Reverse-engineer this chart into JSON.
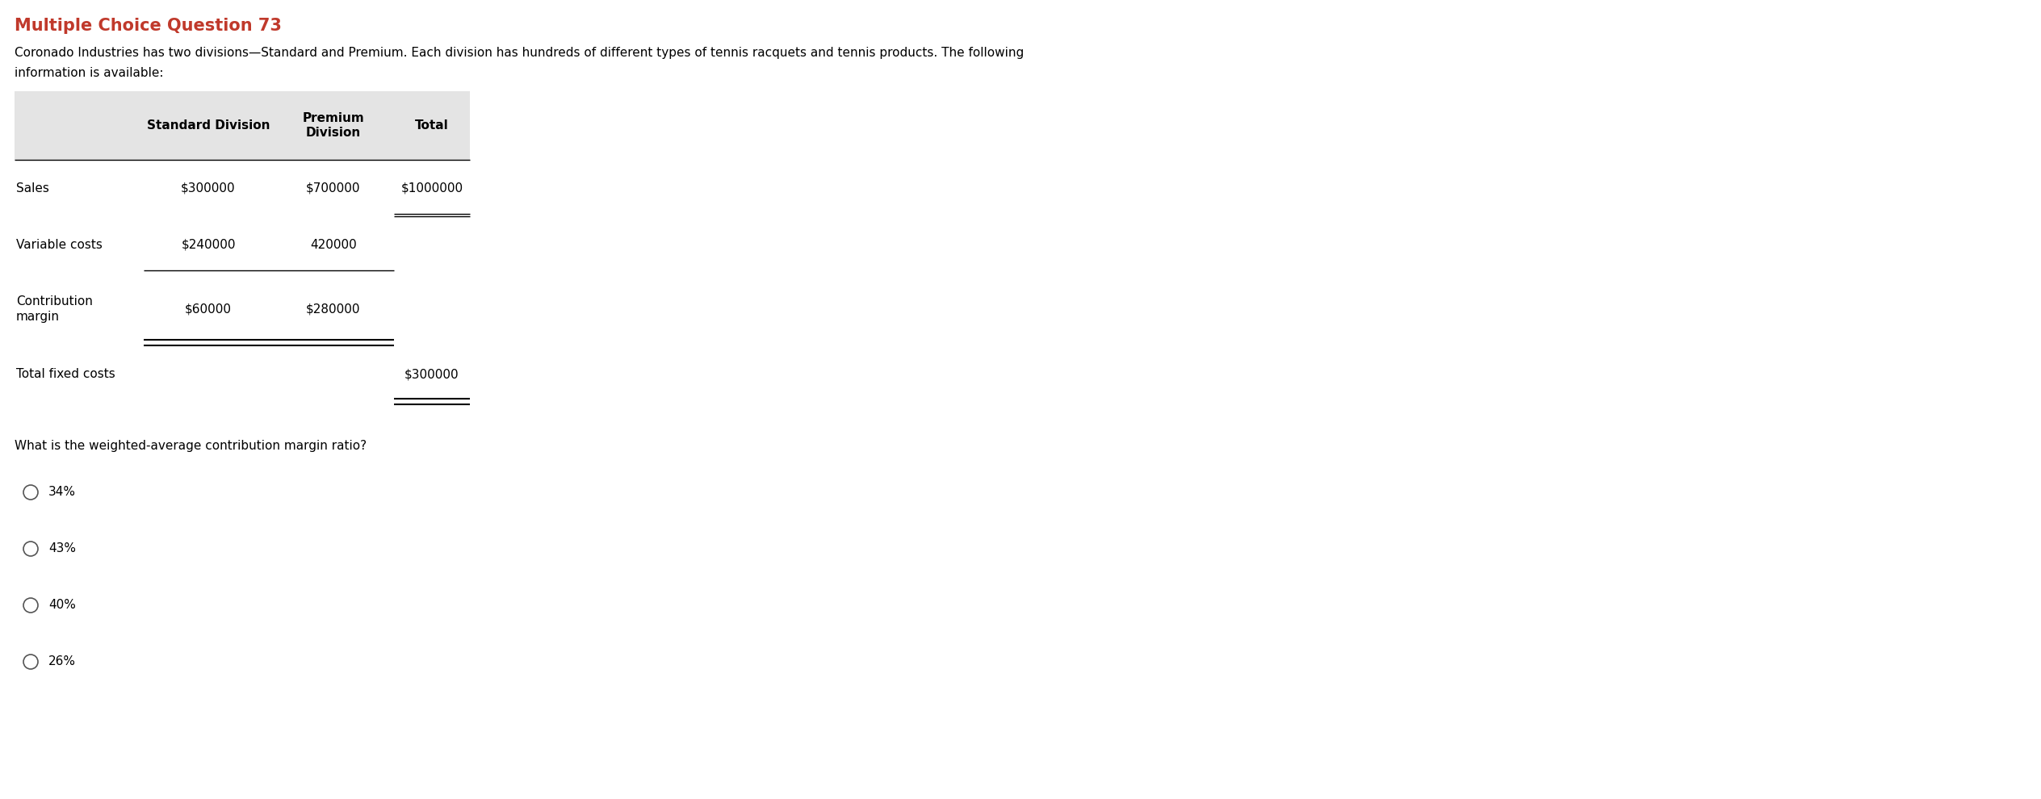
{
  "title": "Multiple Choice Question 73",
  "title_color": "#c0392b",
  "description_line1": "Coronado Industries has two divisions—Standard and Premium. Each division has hundreds of different types of tennis racquets and tennis products. The following",
  "description_line2": "information is available:",
  "table_header": [
    "",
    "Standard Division",
    "Premium\nDivision",
    "Total"
  ],
  "table_rows": [
    [
      "Sales",
      "$300000",
      "$700000",
      "$1000000"
    ],
    [
      "Variable costs",
      "$240000",
      "420000",
      ""
    ],
    [
      "Contribution\nmargin",
      "$60000",
      "$280000",
      ""
    ],
    [
      "Total fixed costs",
      "",
      "",
      "$300000"
    ]
  ],
  "question": "What is the weighted-average contribution margin ratio?",
  "options": [
    "34%",
    "43%",
    "40%",
    "26%"
  ],
  "bg_color": "#ffffff",
  "table_header_bg": "#e4e4e4",
  "text_color": "#000000",
  "title_fontsize": 15,
  "body_fontsize": 11,
  "table_fontsize": 11
}
